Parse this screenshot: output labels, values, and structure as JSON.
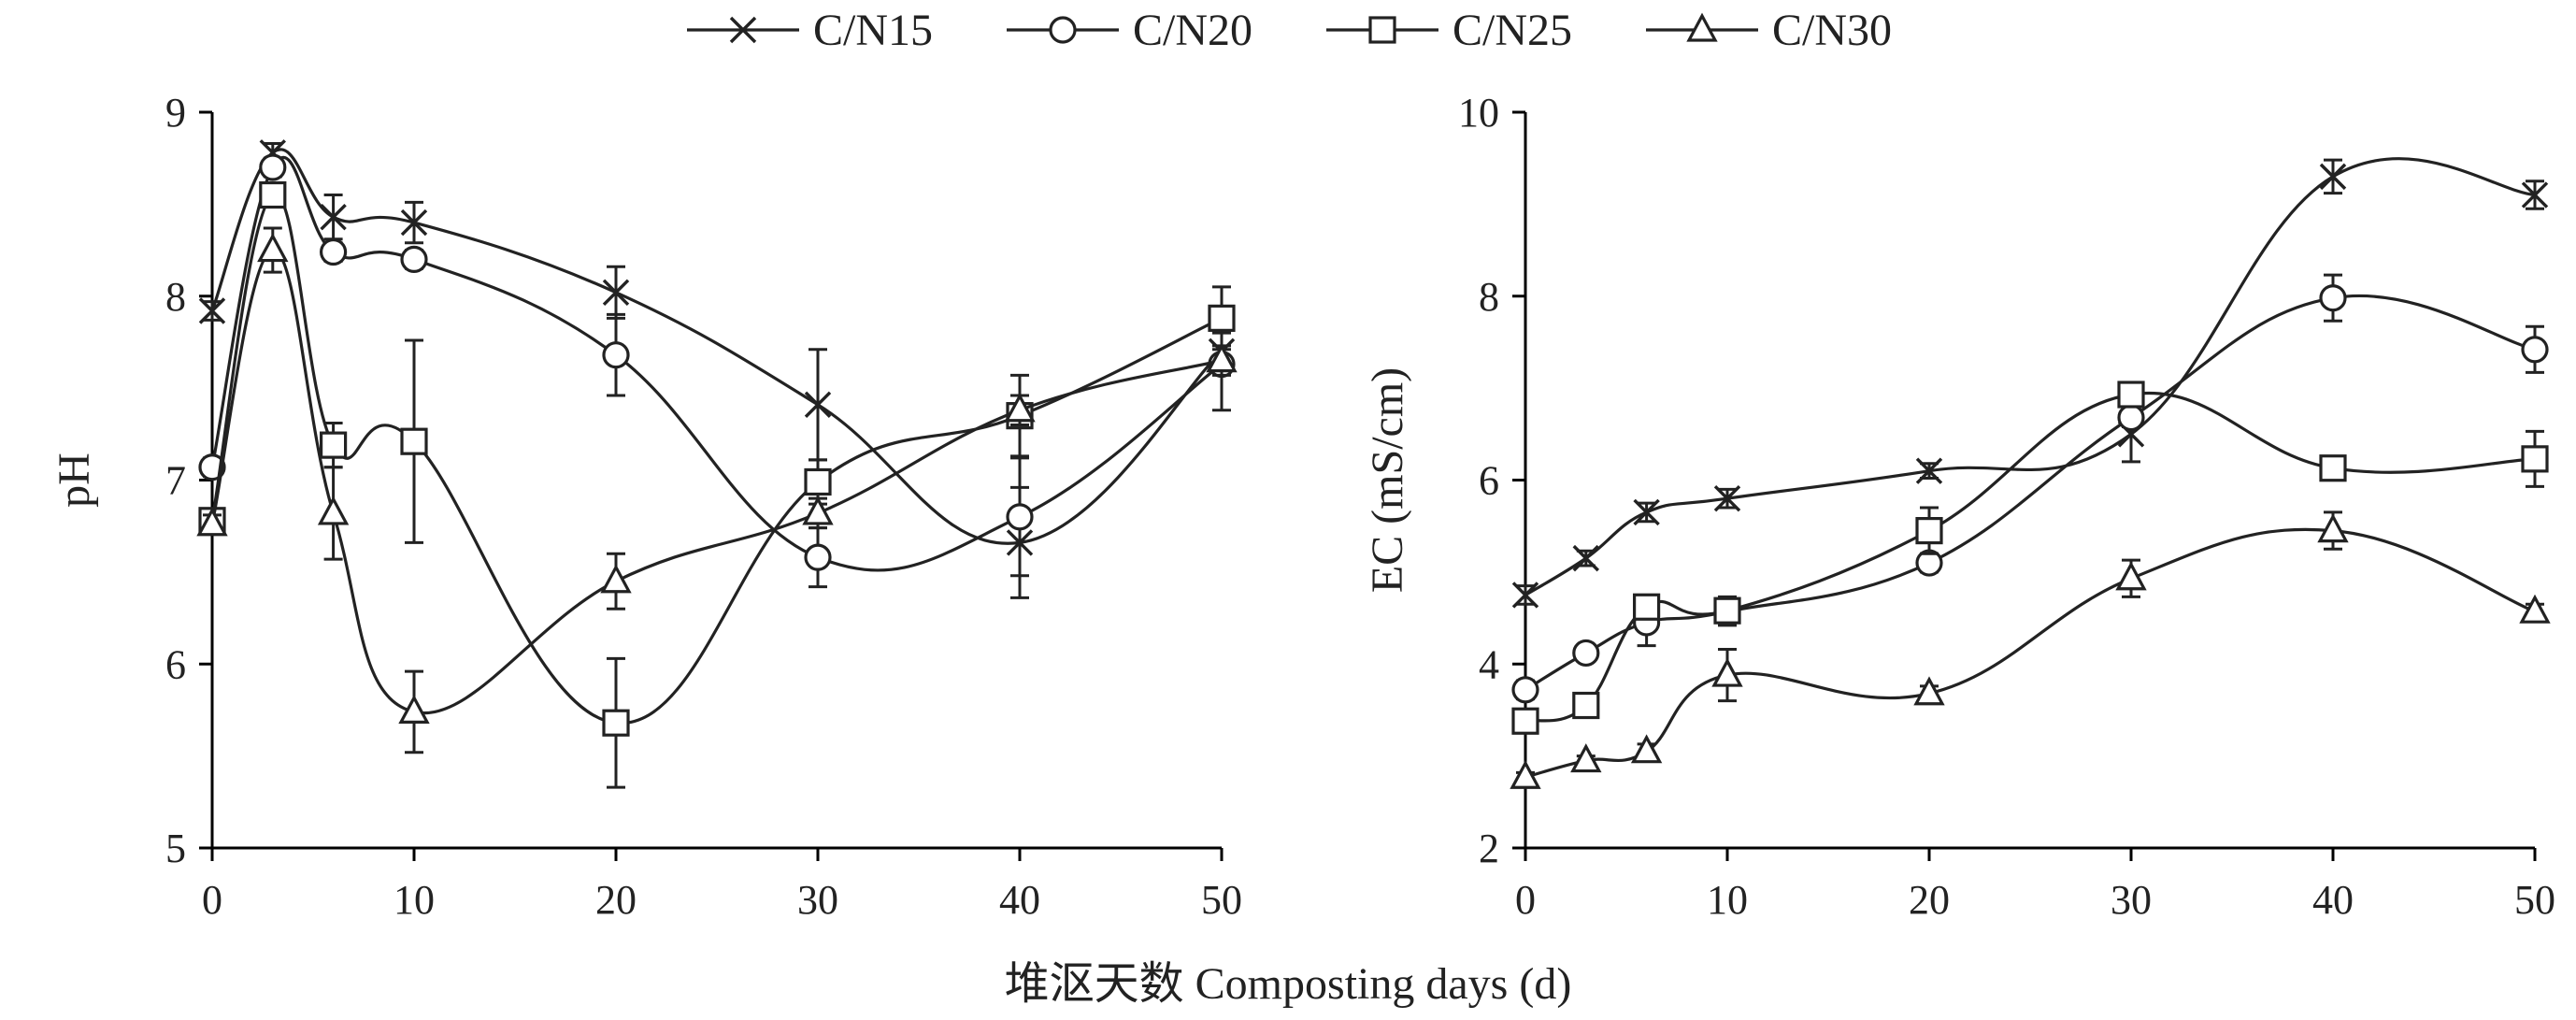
{
  "chart_data": [
    {
      "type": "line",
      "panel": "left",
      "xlabel": "",
      "ylabel": "pH",
      "xlim": [
        0,
        50
      ],
      "ylim": [
        5,
        9
      ],
      "xticks": [
        0,
        10,
        20,
        30,
        40,
        50
      ],
      "yticks": [
        5,
        6,
        7,
        8,
        9
      ],
      "x": [
        0,
        3,
        6,
        10,
        20,
        30,
        40,
        50
      ],
      "series": [
        {
          "name": "C/N15",
          "marker": "x",
          "values": [
            7.92,
            8.78,
            8.43,
            8.4,
            8.02,
            7.41,
            6.66,
            7.7
          ],
          "errors": [
            0.05,
            0.05,
            0.12,
            0.11,
            0.14,
            0.3,
            0.3,
            0.1
          ]
        },
        {
          "name": "C/N20",
          "marker": "circle",
          "values": [
            7.07,
            8.7,
            8.24,
            8.2,
            7.68,
            6.58,
            6.8,
            7.63
          ],
          "errors": [
            0.05,
            0.05,
            0.05,
            0.05,
            0.22,
            0.16,
            0.32,
            0.25
          ]
        },
        {
          "name": "C/N25",
          "marker": "square",
          "values": [
            6.78,
            8.55,
            7.19,
            7.21,
            5.68,
            6.99,
            7.35,
            7.88
          ],
          "errors": [
            0.05,
            0.05,
            0.12,
            0.55,
            0.35,
            0.12,
            0.22,
            0.17
          ]
        },
        {
          "name": "C/N30",
          "marker": "triangle",
          "values": [
            6.76,
            8.25,
            6.82,
            5.74,
            6.45,
            6.82,
            7.38,
            7.65
          ],
          "errors": [
            0.05,
            0.12,
            0.25,
            0.22,
            0.15,
            0.08,
            0.08,
            0.08
          ]
        }
      ]
    },
    {
      "type": "line",
      "panel": "right",
      "xlabel": "",
      "ylabel": "EC (mS/cm)",
      "xlim": [
        0,
        50
      ],
      "ylim": [
        2,
        10
      ],
      "xticks": [
        0,
        10,
        20,
        30,
        40,
        50
      ],
      "yticks": [
        2,
        4,
        6,
        8,
        10
      ],
      "x": [
        0,
        3,
        6,
        10,
        20,
        30,
        40,
        50
      ],
      "series": [
        {
          "name": "C/N15",
          "marker": "x",
          "values": [
            4.75,
            5.15,
            5.65,
            5.8,
            6.1,
            6.5,
            9.3,
            9.1
          ],
          "errors": [
            0.1,
            0.08,
            0.1,
            0.1,
            0.08,
            0.3,
            0.18,
            0.15
          ]
        },
        {
          "name": "C/N20",
          "marker": "circle",
          "values": [
            3.72,
            4.12,
            4.45,
            4.57,
            5.1,
            6.68,
            7.98,
            7.42
          ],
          "errors": [
            0.1,
            0.08,
            0.25,
            0.15,
            0.1,
            0.1,
            0.25,
            0.25
          ]
        },
        {
          "name": "C/N25",
          "marker": "square",
          "values": [
            3.38,
            3.55,
            4.62,
            4.58,
            5.45,
            6.93,
            6.13,
            6.23
          ],
          "errors": [
            0.05,
            0.05,
            0.1,
            0.15,
            0.25,
            0.1,
            0.1,
            0.3
          ]
        },
        {
          "name": "C/N30",
          "marker": "triangle",
          "values": [
            2.77,
            2.95,
            3.05,
            3.88,
            3.68,
            4.93,
            5.45,
            4.57
          ],
          "errors": [
            0.05,
            0.05,
            0.08,
            0.28,
            0.08,
            0.2,
            0.2,
            0.08
          ]
        }
      ]
    }
  ],
  "shared_xlabel": "堆沤天数 Composting days (d)",
  "legend": {
    "placement": "top-center",
    "items": [
      "C/N15",
      "C/N20",
      "C/N25",
      "C/N30"
    ]
  },
  "colors": {
    "ink": "#222222",
    "background": "#ffffff"
  }
}
